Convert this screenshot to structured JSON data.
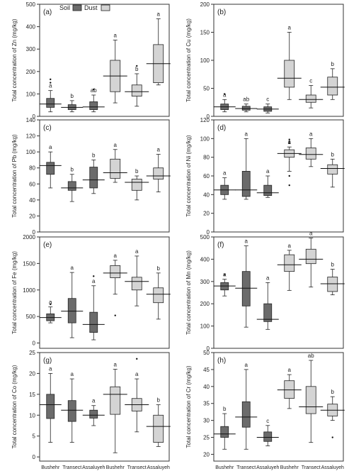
{
  "legend": {
    "items": [
      {
        "name": "Soil",
        "color": "#6b6b6b"
      },
      {
        "name": "Dust",
        "color": "#d4d4d4"
      }
    ]
  },
  "categories": [
    "Bushehr",
    "Transect",
    "Assaluyeh",
    "Bushehr",
    "Transect",
    "Assaluyeh"
  ],
  "chart_data": [
    {
      "type": "box",
      "panel": "(a)",
      "ylabel": "Total concentration of Zn (mg/kg)",
      "ylim": [
        0,
        500
      ],
      "yticks": [
        0,
        100,
        200,
        300,
        400,
        500
      ],
      "boxes": [
        {
          "min": 20,
          "q1": 40,
          "median": 55,
          "q3": 80,
          "max": 115,
          "letter": "a",
          "outliers": [
            150,
            165
          ]
        },
        {
          "min": 20,
          "q1": 30,
          "median": 40,
          "q3": 52,
          "max": 70,
          "letter": "b",
          "outliers": []
        },
        {
          "min": 20,
          "q1": 30,
          "median": 42,
          "q3": 65,
          "max": 95,
          "letter": "ab",
          "outliers": [
            120
          ]
        },
        {
          "min": 60,
          "q1": 110,
          "median": 180,
          "q3": 250,
          "max": 340,
          "letter": "a",
          "outliers": []
        },
        {
          "min": 45,
          "q1": 90,
          "median": 110,
          "q3": 140,
          "max": 190,
          "letter": "b",
          "outliers": [
            225
          ]
        },
        {
          "min": 140,
          "q1": 150,
          "median": 235,
          "q3": 320,
          "max": 435,
          "letter": "a",
          "outliers": []
        }
      ]
    },
    {
      "type": "box",
      "panel": "(b)",
      "ylabel": "Total concentration of Cu (mg/kg)",
      "ylim": [
        0,
        200
      ],
      "yticks": [
        0,
        50,
        100,
        150,
        200
      ],
      "boxes": [
        {
          "min": 8,
          "q1": 12,
          "median": 17,
          "q3": 22,
          "max": 30,
          "letter": "a",
          "outliers": [
            40
          ]
        },
        {
          "min": 8,
          "q1": 11,
          "median": 14,
          "q3": 18,
          "max": 22,
          "letter": "ab",
          "outliers": []
        },
        {
          "min": 6,
          "q1": 9,
          "median": 13,
          "q3": 17,
          "max": 22,
          "letter": "c",
          "outliers": []
        },
        {
          "min": 30,
          "q1": 52,
          "median": 68,
          "q3": 100,
          "max": 150,
          "letter": "a",
          "outliers": []
        },
        {
          "min": 15,
          "q1": 25,
          "median": 30,
          "q3": 38,
          "max": 55,
          "letter": "c",
          "outliers": []
        },
        {
          "min": 30,
          "q1": 38,
          "median": 52,
          "q3": 70,
          "max": 85,
          "letter": "b",
          "outliers": []
        }
      ]
    },
    {
      "type": "box",
      "panel": "(c)",
      "ylabel": "Total concentration of Pb (mg/kg)",
      "ylim": [
        0,
        140
      ],
      "yticks": [
        0,
        20,
        40,
        60,
        80,
        100,
        120,
        140
      ],
      "boxes": [
        {
          "min": 55,
          "q1": 72,
          "median": 83,
          "q3": 87,
          "max": 100,
          "letter": "a",
          "outliers": []
        },
        {
          "min": 38,
          "q1": 52,
          "median": 55,
          "q3": 63,
          "max": 72,
          "letter": "b",
          "outliers": []
        },
        {
          "min": 48,
          "q1": 55,
          "median": 65,
          "q3": 81,
          "max": 90,
          "letter": "b",
          "outliers": []
        },
        {
          "min": 62,
          "q1": 67,
          "median": 74,
          "q3": 91,
          "max": 103,
          "letter": "a",
          "outliers": []
        },
        {
          "min": 40,
          "q1": 52,
          "median": 62,
          "q3": 66,
          "max": 70,
          "letter": "b",
          "outliers": []
        },
        {
          "min": 50,
          "q1": 66,
          "median": 70,
          "q3": 80,
          "max": 97,
          "letter": "a",
          "outliers": []
        }
      ]
    },
    {
      "type": "box",
      "panel": "(d)",
      "ylabel": "Total concentration of Ni (mg/kg)",
      "ylim": [
        0,
        120
      ],
      "yticks": [
        0,
        20,
        40,
        60,
        80,
        100,
        120
      ],
      "boxes": [
        {
          "min": 35,
          "q1": 40,
          "median": 45,
          "q3": 50,
          "max": 58,
          "letter": "a",
          "outliers": []
        },
        {
          "min": 35,
          "q1": 38,
          "median": 45,
          "q3": 65,
          "max": 100,
          "letter": "a",
          "outliers": []
        },
        {
          "min": 37,
          "q1": 39,
          "median": 42,
          "q3": 50,
          "max": 60,
          "letter": "a",
          "outliers": []
        },
        {
          "min": 65,
          "q1": 80,
          "median": 84,
          "q3": 88,
          "max": 91,
          "letter": "a",
          "outliers": [
            50,
            60,
            95,
            97,
            99
          ]
        },
        {
          "min": 70,
          "q1": 78,
          "median": 83,
          "q3": 90,
          "max": 100,
          "letter": "a",
          "outliers": []
        },
        {
          "min": 48,
          "q1": 62,
          "median": 68,
          "q3": 72,
          "max": 78,
          "letter": "b",
          "outliers": []
        }
      ]
    },
    {
      "type": "box",
      "panel": "(e)",
      "ylabel": "Total concentration of Fe (mg/kg)",
      "ylim": [
        -100,
        2000
      ],
      "yticks": [
        0,
        500,
        1000,
        1500,
        2000
      ],
      "boxes": [
        {
          "min": 380,
          "q1": 420,
          "median": 480,
          "q3": 550,
          "max": 680,
          "letter": "a",
          "outliers": [
            730
          ]
        },
        {
          "min": 100,
          "q1": 380,
          "median": 600,
          "q3": 840,
          "max": 1330,
          "letter": "a",
          "outliers": []
        },
        {
          "min": 60,
          "q1": 200,
          "median": 350,
          "q3": 580,
          "max": 1080,
          "letter": "a",
          "outliers": [
            1260
          ]
        },
        {
          "min": 920,
          "q1": 1230,
          "median": 1320,
          "q3": 1460,
          "max": 1560,
          "letter": "a",
          "outliers": [
            520
          ]
        },
        {
          "min": 700,
          "q1": 1000,
          "median": 1160,
          "q3": 1240,
          "max": 1640,
          "letter": "a",
          "outliers": []
        },
        {
          "min": 450,
          "q1": 760,
          "median": 920,
          "q3": 1040,
          "max": 1320,
          "letter": "b",
          "outliers": []
        }
      ]
    },
    {
      "type": "box",
      "panel": "(f)",
      "ylabel": "Total concentration of Mn (mg/kg)",
      "ylim": [
        0,
        500
      ],
      "yticks": [
        0,
        100,
        200,
        300,
        400,
        500
      ],
      "boxes": [
        {
          "min": 235,
          "q1": 262,
          "median": 280,
          "q3": 295,
          "max": 310,
          "letter": "a",
          "outliers": [
            330
          ]
        },
        {
          "min": 95,
          "q1": 190,
          "median": 270,
          "q3": 345,
          "max": 460,
          "letter": "a",
          "outliers": []
        },
        {
          "min": 85,
          "q1": 120,
          "median": 130,
          "q3": 200,
          "max": 295,
          "letter": "a",
          "outliers": []
        },
        {
          "min": 260,
          "q1": 345,
          "median": 375,
          "q3": 420,
          "max": 440,
          "letter": "a",
          "outliers": []
        },
        {
          "min": 275,
          "q1": 380,
          "median": 400,
          "q3": 445,
          "max": 495,
          "letter": "a",
          "outliers": []
        },
        {
          "min": 240,
          "q1": 255,
          "median": 290,
          "q3": 320,
          "max": 355,
          "letter": "b",
          "outliers": []
        }
      ]
    },
    {
      "type": "box",
      "panel": "(g)",
      "ylabel": "Total concentration of Co (mg/kg)",
      "ylim": [
        -1,
        25
      ],
      "yticks": [
        0,
        5,
        10,
        15,
        20,
        25
      ],
      "boxes": [
        {
          "min": 3.5,
          "q1": 9.2,
          "median": 12.5,
          "q3": 15,
          "max": 20,
          "letter": "a",
          "outliers": []
        },
        {
          "min": 3.5,
          "q1": 8.5,
          "median": 11.2,
          "q3": 13.5,
          "max": 18.7,
          "letter": "a",
          "outliers": []
        },
        {
          "min": 7.5,
          "q1": 9.3,
          "median": 10,
          "q3": 11.2,
          "max": 12.3,
          "letter": "a",
          "outliers": []
        },
        {
          "min": 1,
          "q1": 10.2,
          "median": 15,
          "q3": 16.8,
          "max": 21,
          "letter": "a",
          "outliers": []
        },
        {
          "min": 6,
          "q1": 11,
          "median": 12.5,
          "q3": 14,
          "max": 18.7,
          "letter": "a",
          "outliers": [
            23.5
          ]
        },
        {
          "min": 2.5,
          "q1": 3.5,
          "median": 7.3,
          "q3": 10,
          "max": 12.5,
          "letter": "b",
          "outliers": []
        }
      ]
    },
    {
      "type": "box",
      "panel": "(h)",
      "ylabel": "Total concentration of Cr (mg/kg)",
      "ylim": [
        18,
        50
      ],
      "yticks": [
        20,
        25,
        30,
        35,
        40,
        45,
        50
      ],
      "boxes": [
        {
          "min": 21.5,
          "q1": 25,
          "median": 26,
          "q3": 28.2,
          "max": 32,
          "letter": "b",
          "outliers": []
        },
        {
          "min": 21.5,
          "q1": 28,
          "median": 31,
          "q3": 35.5,
          "max": 45,
          "letter": "a",
          "outliers": []
        },
        {
          "min": 22.5,
          "q1": 23.8,
          "median": 25,
          "q3": 26.6,
          "max": 28.5,
          "letter": "c",
          "outliers": []
        },
        {
          "min": 33.5,
          "q1": 36.5,
          "median": 39,
          "q3": 41.7,
          "max": 43.5,
          "letter": "a",
          "outliers": []
        },
        {
          "min": 23.5,
          "q1": 32,
          "median": 34,
          "q3": 40,
          "max": 47.7,
          "letter": "ab",
          "outliers": []
        },
        {
          "min": 30,
          "q1": 31.3,
          "median": 33,
          "q3": 34.8,
          "max": 37,
          "letter": "b",
          "outliers": [
            25
          ]
        }
      ]
    }
  ]
}
